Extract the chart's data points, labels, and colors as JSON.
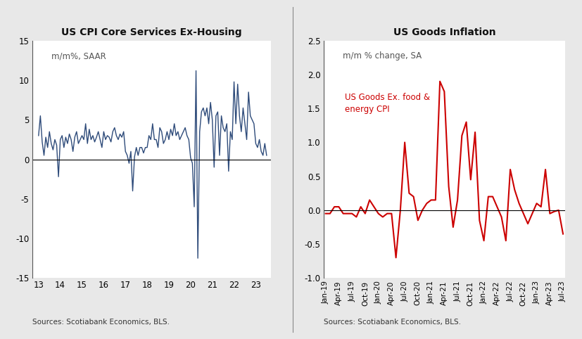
{
  "chart1": {
    "title": "US CPI Core Services Ex-Housing",
    "subtitle": "m/m%, SAAR",
    "color": "#2e4b7a",
    "ylim": [
      -15,
      15
    ],
    "yticks": [
      -15,
      -10,
      -5,
      0,
      5,
      10,
      15
    ],
    "xticks": [
      13,
      14,
      15,
      16,
      17,
      18,
      19,
      20,
      21,
      22,
      23
    ],
    "source": "Sources: Scotiabank Economics, BLS.",
    "x": [
      13.0,
      13.083,
      13.167,
      13.25,
      13.333,
      13.417,
      13.5,
      13.583,
      13.667,
      13.75,
      13.833,
      13.917,
      14.0,
      14.083,
      14.167,
      14.25,
      14.333,
      14.417,
      14.5,
      14.583,
      14.667,
      14.75,
      14.833,
      14.917,
      15.0,
      15.083,
      15.167,
      15.25,
      15.333,
      15.417,
      15.5,
      15.583,
      15.667,
      15.75,
      15.833,
      15.917,
      16.0,
      16.083,
      16.167,
      16.25,
      16.333,
      16.417,
      16.5,
      16.583,
      16.667,
      16.75,
      16.833,
      16.917,
      17.0,
      17.083,
      17.167,
      17.25,
      17.333,
      17.417,
      17.5,
      17.583,
      17.667,
      17.75,
      17.833,
      17.917,
      18.0,
      18.083,
      18.167,
      18.25,
      18.333,
      18.417,
      18.5,
      18.583,
      18.667,
      18.75,
      18.833,
      18.917,
      19.0,
      19.083,
      19.167,
      19.25,
      19.333,
      19.417,
      19.5,
      19.583,
      19.667,
      19.75,
      19.833,
      19.917,
      20.0,
      20.083,
      20.167,
      20.25,
      20.333,
      20.417,
      20.5,
      20.583,
      20.667,
      20.75,
      20.833,
      20.917,
      21.0,
      21.083,
      21.167,
      21.25,
      21.333,
      21.417,
      21.5,
      21.583,
      21.667,
      21.75,
      21.833,
      21.917,
      22.0,
      22.083,
      22.167,
      22.25,
      22.333,
      22.417,
      22.5,
      22.583,
      22.667,
      22.75,
      22.833,
      22.917,
      23.0,
      23.083,
      23.167,
      23.25,
      23.333,
      23.417,
      23.5
    ],
    "y": [
      3.0,
      5.5,
      2.2,
      0.5,
      2.8,
      1.5,
      3.5,
      2.0,
      1.2,
      2.5,
      1.8,
      -2.2,
      2.5,
      3.0,
      1.5,
      2.8,
      2.0,
      3.2,
      2.5,
      1.0,
      2.8,
      3.5,
      2.0,
      2.5,
      3.0,
      2.5,
      4.5,
      2.0,
      3.8,
      2.5,
      3.0,
      2.2,
      2.8,
      3.5,
      2.5,
      1.5,
      3.5,
      2.5,
      3.0,
      2.8,
      2.2,
      3.5,
      4.0,
      3.0,
      2.5,
      3.2,
      2.8,
      3.5,
      1.0,
      0.5,
      -0.5,
      1.0,
      -4.0,
      0.3,
      1.5,
      0.5,
      1.5,
      1.5,
      0.8,
      1.5,
      1.5,
      3.0,
      2.5,
      4.5,
      2.5,
      2.5,
      1.5,
      4.0,
      3.5,
      2.0,
      2.5,
      3.5,
      2.5,
      3.8,
      3.0,
      4.5,
      3.0,
      3.5,
      2.5,
      3.0,
      3.5,
      4.0,
      3.0,
      2.5,
      0.2,
      -0.5,
      -6.0,
      11.2,
      -12.5,
      3.5,
      6.0,
      6.5,
      5.5,
      6.5,
      4.5,
      7.2,
      5.0,
      -1.0,
      5.5,
      6.0,
      0.5,
      5.5,
      4.0,
      3.5,
      4.5,
      -1.5,
      3.5,
      2.5,
      9.8,
      4.5,
      9.5,
      5.5,
      3.5,
      6.5,
      4.5,
      2.5,
      8.5,
      5.5,
      5.0,
      4.5,
      2.0,
      1.5,
      2.5,
      1.0,
      0.5,
      2.0,
      0.5
    ]
  },
  "chart2": {
    "title": "US Goods Inflation",
    "subtitle": "m/m % change, SA",
    "annotation": "US Goods Ex. food &\nenergy CPI",
    "annotation_color": "#cc0000",
    "color": "#cc0000",
    "ylim": [
      -1.0,
      2.5
    ],
    "yticks": [
      -1.0,
      -0.5,
      0.0,
      0.5,
      1.0,
      1.5,
      2.0,
      2.5
    ],
    "source": "Sources: Scotiabank Economics, BLS.",
    "labels": [
      "Jan-19",
      "Apr-19",
      "Jul-19",
      "Oct-19",
      "Jan-20",
      "Apr-20",
      "Jul-20",
      "Oct-20",
      "Jan-21",
      "Apr-21",
      "Jul-21",
      "Oct-21",
      "Jan-22",
      "Apr-22",
      "Jul-22",
      "Oct-22",
      "Jan-23",
      "Apr-23",
      "Jul-23"
    ],
    "x": [
      0,
      1,
      2,
      3,
      4,
      5,
      6,
      7,
      8,
      9,
      10,
      11,
      12,
      13,
      14,
      15,
      16,
      17,
      18,
      19,
      20,
      21,
      22,
      23,
      24,
      25,
      26,
      27,
      28,
      29,
      30,
      31,
      32,
      33,
      34,
      35,
      36,
      37,
      38,
      39,
      40,
      41,
      42,
      43,
      44,
      45,
      46,
      47,
      48,
      49,
      50,
      51,
      52,
      53,
      54
    ],
    "y": [
      -0.05,
      -0.05,
      0.05,
      0.05,
      -0.05,
      -0.05,
      -0.05,
      -0.1,
      0.05,
      -0.05,
      0.15,
      0.05,
      -0.05,
      -0.1,
      -0.05,
      -0.05,
      -0.7,
      0.0,
      1.0,
      0.25,
      0.2,
      -0.15,
      0.0,
      0.1,
      0.15,
      0.15,
      1.9,
      1.75,
      0.35,
      -0.25,
      0.15,
      1.1,
      1.3,
      0.45,
      1.15,
      -0.15,
      -0.45,
      0.2,
      0.2,
      0.05,
      -0.1,
      -0.45,
      0.6,
      0.3,
      0.1,
      -0.05,
      -0.2,
      -0.05,
      0.1,
      0.05,
      0.6,
      -0.05,
      -0.02,
      0.0,
      -0.35
    ]
  },
  "bg_color": "#e8e8e8",
  "panel_color": "#ffffff"
}
